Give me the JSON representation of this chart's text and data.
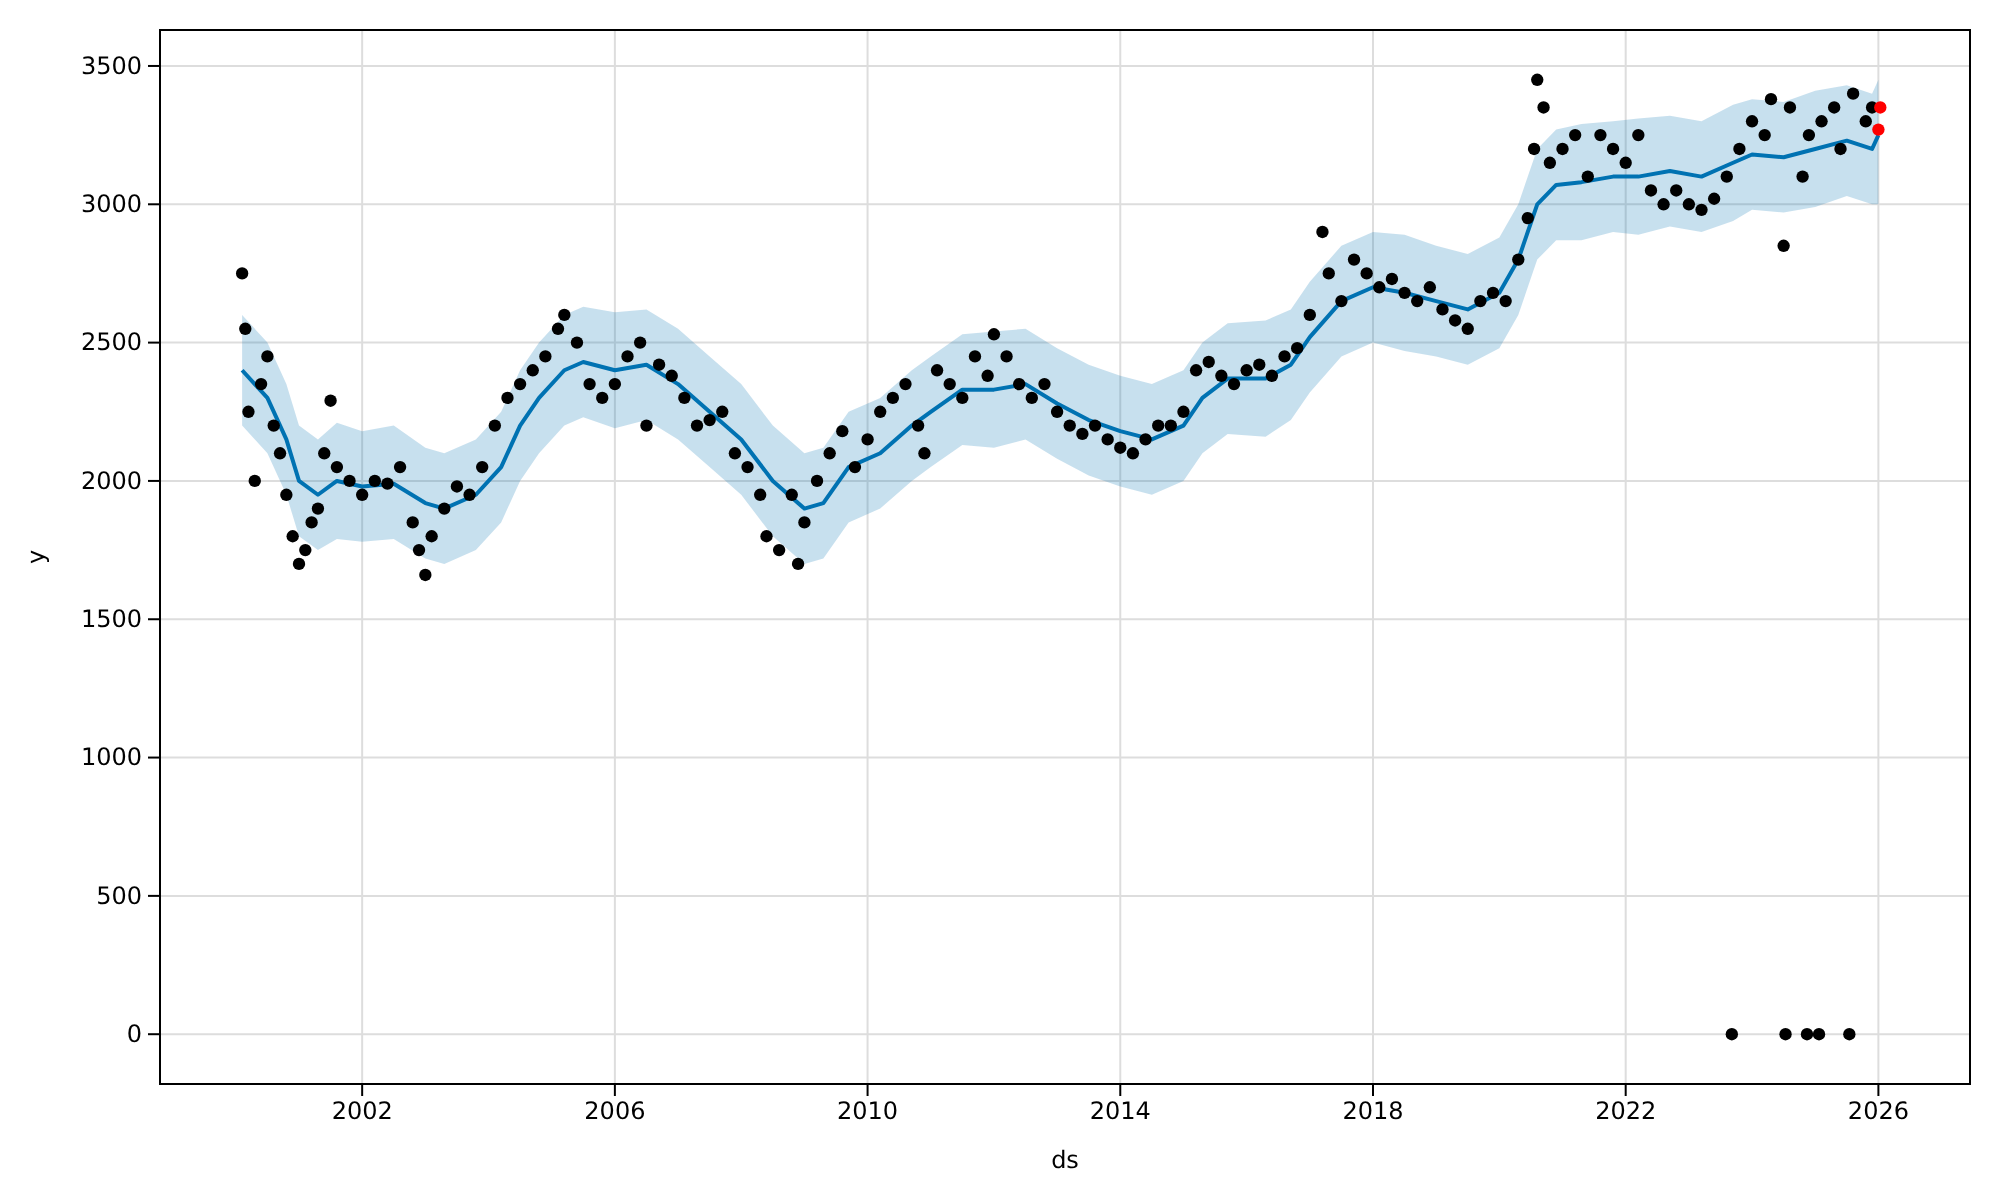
{
  "chart_data": {
    "type": "scatter",
    "xlabel": "ds",
    "ylabel": "y",
    "xlim": [
      1998.8,
      2027.45
    ],
    "ylim": [
      -180,
      3630
    ],
    "xticks": [
      2002,
      2006,
      2010,
      2014,
      2018,
      2022,
      2026
    ],
    "yticks": [
      0,
      500,
      1000,
      1500,
      2000,
      2500,
      3000,
      3500
    ],
    "grid": true,
    "series": [
      {
        "type": "line",
        "color": "#0072b2",
        "x": [
          2000.1,
          2000.5,
          2000.8,
          2001.0,
          2001.3,
          2001.6,
          2002.0,
          2002.5,
          2003.0,
          2003.3,
          2003.8,
          2004.2,
          2004.5,
          2004.8,
          2005.2,
          2005.5,
          2006.0,
          2006.5,
          2007.0,
          2007.5,
          2008.0,
          2008.5,
          2009.0,
          2009.3,
          2009.7,
          2010.2,
          2010.7,
          2011.0,
          2011.5,
          2012.0,
          2012.5,
          2013.0,
          2013.5,
          2014.0,
          2014.5,
          2015.0,
          2015.3,
          2015.7,
          2016.3,
          2016.7,
          2017.0,
          2017.5,
          2018.0,
          2018.5,
          2019.0,
          2019.5,
          2020.0,
          2020.3,
          2020.6,
          2020.9,
          2021.3,
          2021.8,
          2022.2,
          2022.7,
          2023.2,
          2023.7,
          2024.0,
          2024.5,
          2025.0,
          2025.5,
          2025.9,
          2026.0
        ],
        "values": [
          2400,
          2300,
          2150,
          2000,
          1950,
          2000,
          1980,
          1990,
          1920,
          1900,
          1950,
          2050,
          2200,
          2300,
          2400,
          2430,
          2400,
          2420,
          2350,
          2250,
          2150,
          2000,
          1900,
          1920,
          2050,
          2100,
          2200,
          2250,
          2330,
          2330,
          2350,
          2280,
          2220,
          2180,
          2150,
          2200,
          2300,
          2370,
          2370,
          2420,
          2520,
          2650,
          2700,
          2680,
          2650,
          2620,
          2680,
          2800,
          3000,
          3070,
          3080,
          3100,
          3100,
          3120,
          3100,
          3150,
          3180,
          3170,
          3200,
          3230,
          3200,
          3250
        ],
        "lower": [
          2200,
          2100,
          1950,
          1800,
          1750,
          1790,
          1780,
          1790,
          1720,
          1700,
          1750,
          1850,
          2000,
          2100,
          2200,
          2230,
          2190,
          2220,
          2150,
          2050,
          1950,
          1800,
          1700,
          1720,
          1850,
          1900,
          2000,
          2050,
          2130,
          2120,
          2150,
          2080,
          2020,
          1980,
          1950,
          2000,
          2100,
          2170,
          2160,
          2220,
          2320,
          2450,
          2500,
          2470,
          2450,
          2420,
          2480,
          2600,
          2800,
          2870,
          2870,
          2900,
          2890,
          2920,
          2900,
          2940,
          2980,
          2970,
          2990,
          3030,
          3000,
          3000
        ],
        "upper": [
          2600,
          2500,
          2350,
          2200,
          2150,
          2210,
          2180,
          2200,
          2120,
          2100,
          2150,
          2250,
          2400,
          2500,
          2600,
          2630,
          2610,
          2620,
          2550,
          2450,
          2350,
          2200,
          2100,
          2120,
          2250,
          2300,
          2400,
          2450,
          2530,
          2540,
          2550,
          2480,
          2420,
          2380,
          2350,
          2400,
          2500,
          2570,
          2580,
          2620,
          2720,
          2850,
          2900,
          2890,
          2850,
          2820,
          2880,
          3000,
          3200,
          3270,
          3290,
          3300,
          3310,
          3320,
          3300,
          3360,
          3380,
          3370,
          3410,
          3430,
          3400,
          3450
        ]
      },
      {
        "color": "#000000",
        "marker": "circle",
        "x": [
          2000.1,
          2000.15,
          2000.2,
          2000.3,
          2000.4,
          2000.5,
          2000.6,
          2000.7,
          2000.8,
          2000.9,
          2001.0,
          2001.1,
          2001.2,
          2001.3,
          2001.4,
          2001.5,
          2001.6,
          2001.8,
          2002.0,
          2002.2,
          2002.4,
          2002.6,
          2002.8,
          2002.9,
          2003.0,
          2003.1,
          2003.3,
          2003.5,
          2003.7,
          2003.9,
          2004.1,
          2004.3,
          2004.5,
          2004.7,
          2004.9,
          2005.1,
          2005.2,
          2005.4,
          2005.6,
          2005.8,
          2006.0,
          2006.2,
          2006.4,
          2006.5,
          2006.7,
          2006.9,
          2007.1,
          2007.3,
          2007.5,
          2007.7,
          2007.9,
          2008.1,
          2008.3,
          2008.4,
          2008.6,
          2008.8,
          2008.9,
          2009.0,
          2009.2,
          2009.4,
          2009.6,
          2009.8,
          2010.0,
          2010.2,
          2010.4,
          2010.6,
          2010.8,
          2010.9,
          2011.1,
          2011.3,
          2011.5,
          2011.7,
          2011.9,
          2012.0,
          2012.2,
          2012.4,
          2012.6,
          2012.8,
          2013.0,
          2013.2,
          2013.4,
          2013.6,
          2013.8,
          2014.0,
          2014.2,
          2014.4,
          2014.6,
          2014.8,
          2015.0,
          2015.2,
          2015.4,
          2015.6,
          2015.8,
          2016.0,
          2016.2,
          2016.4,
          2016.6,
          2016.8,
          2017.0,
          2017.2,
          2017.3,
          2017.5,
          2017.7,
          2017.9,
          2018.1,
          2018.3,
          2018.5,
          2018.7,
          2018.9,
          2019.1,
          2019.3,
          2019.5,
          2019.7,
          2019.9,
          2020.1,
          2020.3,
          2020.45,
          2020.55,
          2020.6,
          2020.7,
          2020.8,
          2021.0,
          2021.2,
          2021.4,
          2021.6,
          2021.8,
          2022.0,
          2022.2,
          2022.4,
          2022.6,
          2022.8,
          2023.0,
          2023.2,
          2023.4,
          2023.6,
          2023.68,
          2023.8,
          2024.0,
          2024.2,
          2024.3,
          2024.5,
          2024.53,
          2024.6,
          2024.8,
          2024.87,
          2024.9,
          2025.06,
          2025.1,
          2025.3,
          2025.4,
          2025.54,
          2025.6,
          2025.8,
          2025.9
        ],
        "values": [
          2750,
          2550,
          2250,
          2000,
          2350,
          2450,
          2200,
          2100,
          1950,
          1800,
          1700,
          1750,
          1850,
          1900,
          2100,
          2290,
          2050,
          2000,
          1950,
          2000,
          1990,
          2050,
          1850,
          1750,
          1660,
          1800,
          1900,
          1980,
          1950,
          2050,
          2200,
          2300,
          2350,
          2400,
          2450,
          2550,
          2600,
          2500,
          2350,
          2300,
          2350,
          2450,
          2500,
          2200,
          2420,
          2380,
          2300,
          2200,
          2220,
          2250,
          2100,
          2050,
          1950,
          1800,
          1750,
          1950,
          1700,
          1850,
          2000,
          2100,
          2180,
          2050,
          2150,
          2250,
          2300,
          2350,
          2200,
          2100,
          2400,
          2350,
          2300,
          2450,
          2380,
          2530,
          2450,
          2350,
          2300,
          2350,
          2250,
          2200,
          2170,
          2200,
          2150,
          2120,
          2100,
          2150,
          2200,
          2200,
          2250,
          2400,
          2430,
          2380,
          2350,
          2400,
          2420,
          2380,
          2450,
          2480,
          2600,
          2900,
          2750,
          2650,
          2800,
          2750,
          2700,
          2730,
          2680,
          2650,
          2700,
          2620,
          2580,
          2550,
          2650,
          2680,
          2650,
          2800,
          2950,
          3200,
          3450,
          3350,
          3150,
          3200,
          3250,
          3100,
          3250,
          3200,
          3150,
          3250,
          3050,
          3000,
          3050,
          3000,
          2980,
          3020,
          3100,
          0,
          3200,
          3300,
          3250,
          3380,
          2850,
          0,
          3350,
          3100,
          0,
          3250,
          0,
          3300,
          3350,
          3200,
          0,
          3400,
          3300,
          3350
        ]
      },
      {
        "color": "#ff0000",
        "marker": "circle",
        "x": [
          2026.0,
          2026.03
        ],
        "values": [
          3270,
          3350
        ]
      }
    ]
  }
}
